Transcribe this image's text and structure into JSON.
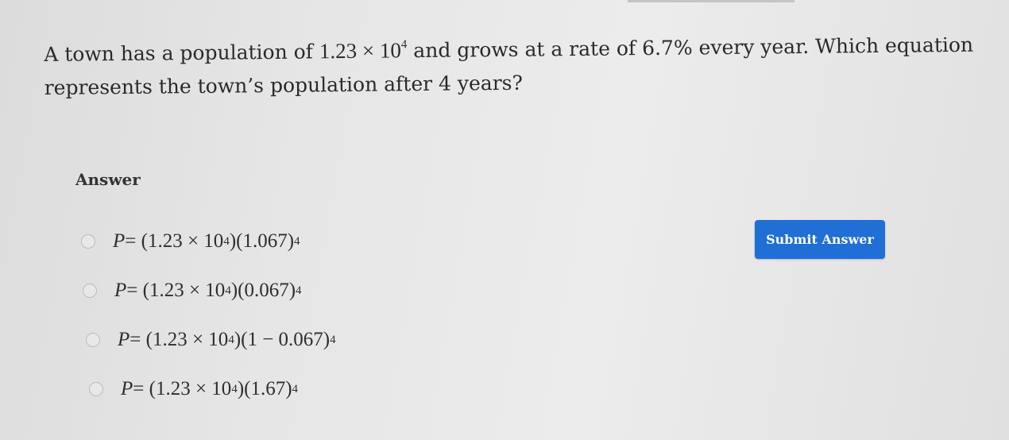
{
  "question": {
    "text_before": "A town has a population of ",
    "math_base": "1.23 × 10",
    "math_exp": "4",
    "text_after": " and grows at a rate of 6.7% every year. Which equation represents the town’s population after 4 years?"
  },
  "answer_label": "Answer",
  "options": [
    {
      "var": "P",
      "a": " = (1.23 × 10",
      "e1": "4",
      "b": ")(1.067)",
      "e2": "4"
    },
    {
      "var": "P",
      "a": " = (1.23 × 10",
      "e1": "4",
      "b": ")(0.067)",
      "e2": "4"
    },
    {
      "var": "P",
      "a": " = (1.23 × 10",
      "e1": "4",
      "b": ")(1 − 0.067)",
      "e2": "4"
    },
    {
      "var": "P",
      "a": " = (1.23 × 10",
      "e1": "4",
      "b": ")(1.67)",
      "e2": "4"
    }
  ],
  "submit_label": "Submit Answer",
  "colors": {
    "submit": "#1f6fd6"
  }
}
